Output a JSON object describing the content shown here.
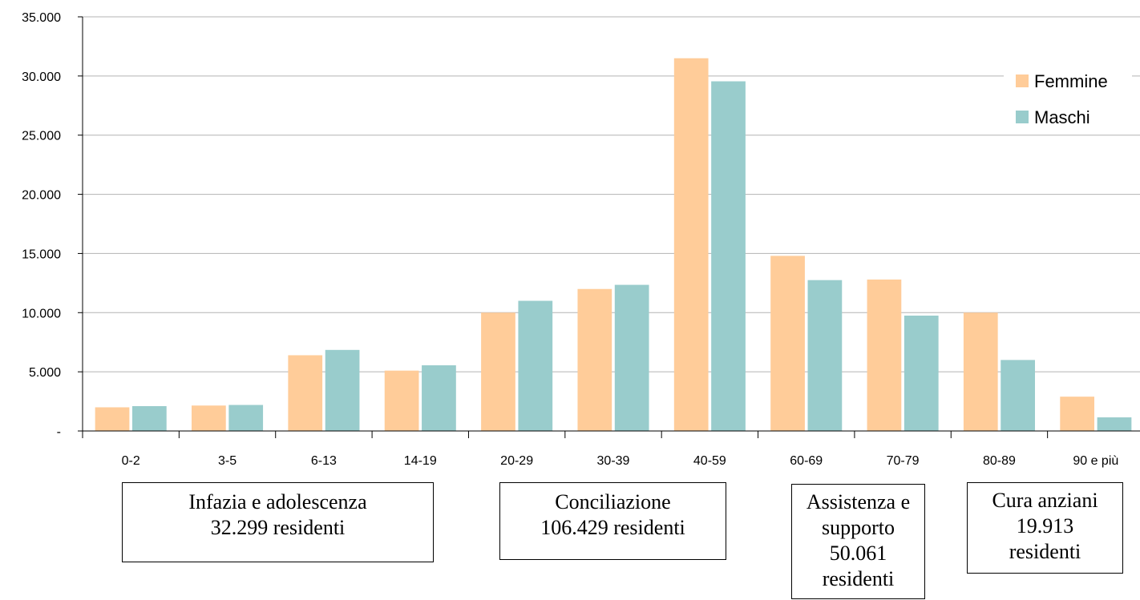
{
  "chart_data": {
    "type": "bar",
    "categories": [
      "0-2",
      "3-5",
      "6-13",
      "14-19",
      "20-29",
      "30-39",
      "40-59",
      "60-69",
      "70-79",
      "80-89",
      "90 e più"
    ],
    "series": [
      {
        "name": "Femmine",
        "color": "#FFCC99",
        "values": [
          2000,
          2150,
          6400,
          5100,
          10000,
          12000,
          31500,
          14800,
          12800,
          10000,
          2900
        ]
      },
      {
        "name": "Maschi",
        "color": "#99CCCC",
        "values": [
          2100,
          2200,
          6850,
          5550,
          11000,
          12350,
          29550,
          12750,
          9750,
          6000,
          1150
        ]
      }
    ],
    "ylim": [
      0,
      35000
    ],
    "yticks": [
      0,
      5000,
      10000,
      15000,
      20000,
      25000,
      30000,
      35000
    ],
    "ytick_labels": [
      "-",
      "5.000",
      "10.000",
      "15.000",
      "20.000",
      "25.000",
      "30.000",
      "35.000"
    ],
    "grid": true,
    "legend_position": "top-right"
  },
  "groups": [
    {
      "line1": "Infazia e adolescenza",
      "line2": "32.299 residenti"
    },
    {
      "line1": "Conciliazione",
      "line2": "106.429 residenti"
    },
    {
      "line1": "Assistenza e",
      "line2": "supporto",
      "line3": "50.061",
      "line4": "residenti"
    },
    {
      "line1": "Cura anziani",
      "line2": "19.913",
      "line3": "residenti"
    }
  ]
}
